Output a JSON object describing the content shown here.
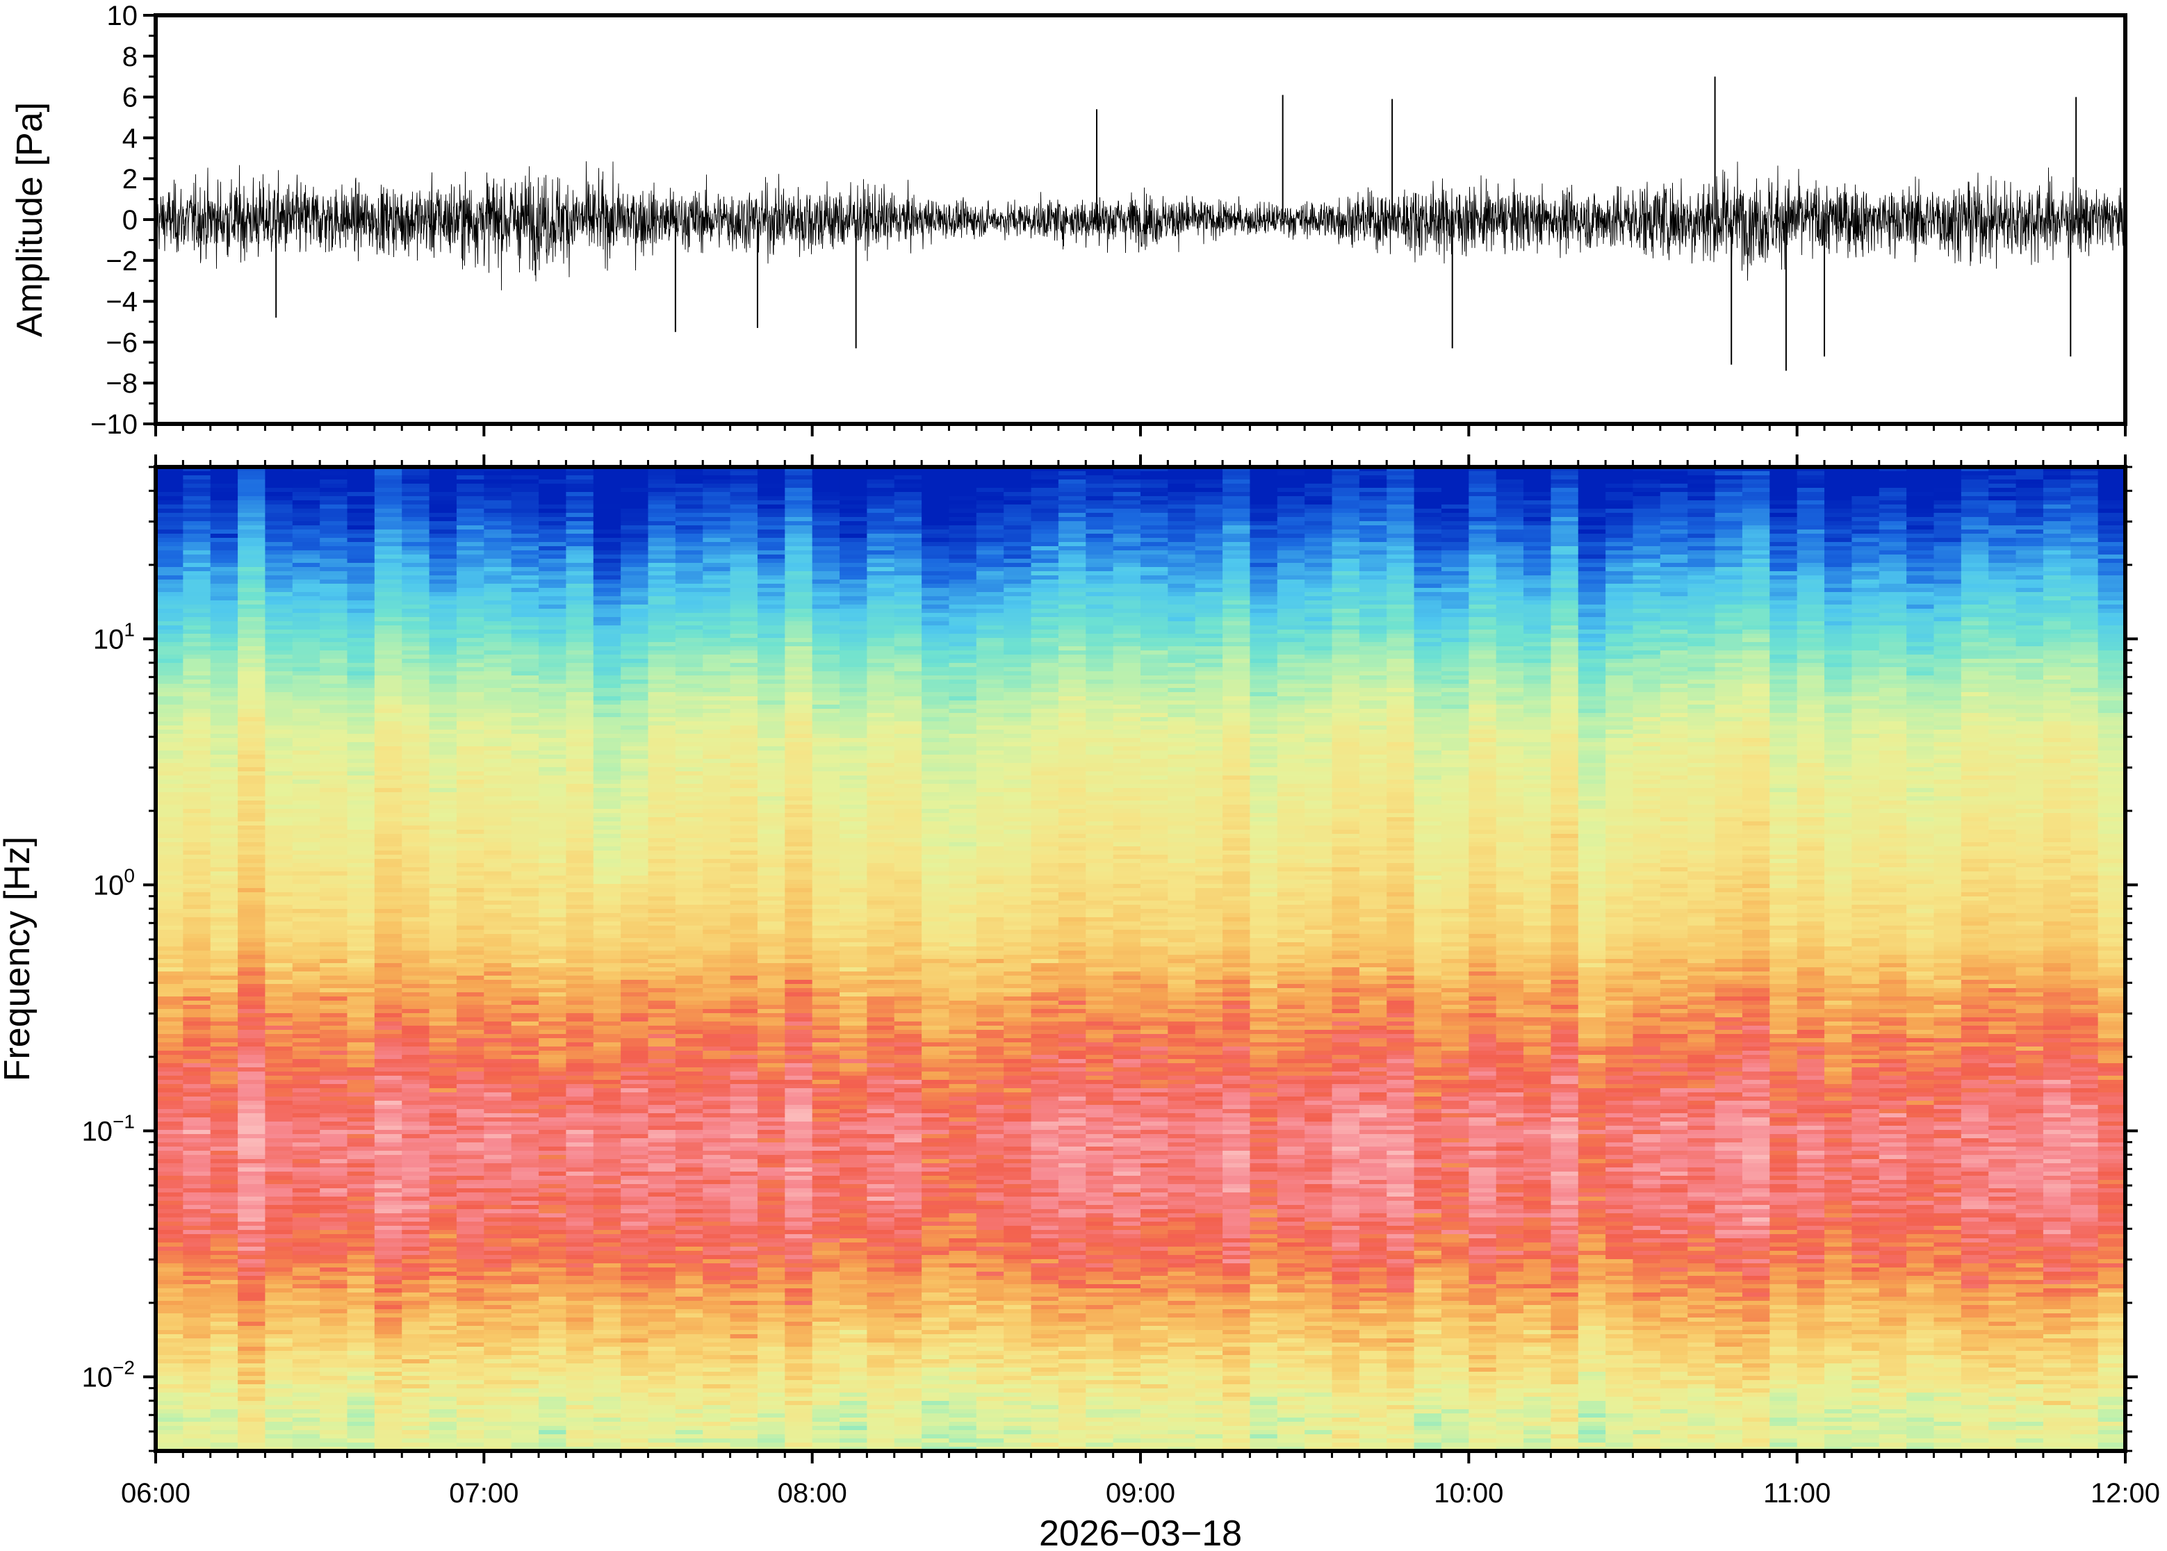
{
  "chart_data": [
    {
      "type": "line",
      "title": "",
      "xlabel": "",
      "ylabel": "Amplitude [Pa]",
      "xlim": [
        "06:00",
        "12:00"
      ],
      "ylim": [
        -10,
        10
      ],
      "y_ticks": [
        "10",
        "8",
        "6",
        "4",
        "2",
        "0",
        "−2",
        "−4",
        "−6",
        "−8",
        "−10"
      ],
      "x_ticks_labeled": false,
      "grid": false,
      "line_color": "#000000",
      "series": [
        {
          "description_of_values": "noisy waveform centered on 0 Pa",
          "typical_range": [
            -2.5,
            2.5
          ],
          "notable_peaks": [
            {
              "time": "10:45",
              "value": 7.0
            },
            {
              "time": "10:58",
              "value": -7.4
            },
            {
              "time": "10:48",
              "value": -7.1
            },
            {
              "time": "11:51",
              "value": 6.0
            },
            {
              "time": "11:50",
              "value": -6.7
            },
            {
              "time": "08:52",
              "value": 5.4
            },
            {
              "time": "09:57",
              "value": -6.3
            },
            {
              "time": "09:26",
              "value": 6.1
            },
            {
              "time": "09:46",
              "value": 5.9
            },
            {
              "time": "07:35",
              "value": -5.5
            },
            {
              "time": "07:50",
              "value": -5.3
            },
            {
              "time": "08:08",
              "value": -6.3
            },
            {
              "time": "11:05",
              "value": -6.7
            },
            {
              "time": "06:22",
              "value": -4.8
            }
          ]
        }
      ]
    },
    {
      "type": "heatmap",
      "title": "",
      "xlabel": "2026−03−18",
      "ylabel": "Frequency [Hz]",
      "xlim": [
        "06:00",
        "12:00"
      ],
      "ylim": [
        0.005,
        50
      ],
      "y_scale": "log",
      "x_ticks": [
        "06:00",
        "07:00",
        "08:00",
        "09:00",
        "10:00",
        "11:00",
        "12:00"
      ],
      "y_ticks": [
        {
          "base": "10",
          "exp": "−2",
          "value": 0.01
        },
        {
          "base": "10",
          "exp": "−1",
          "value": 0.1
        },
        {
          "base": "10",
          "exp": "0",
          "value": 1
        },
        {
          "base": "10",
          "exp": "1",
          "value": 10
        }
      ],
      "time_columns": 72,
      "colormap": "rainbow (blue = low power, pink = high power)",
      "colormap_stops": [
        "#0022bb",
        "#1b6ae0",
        "#4fc8ee",
        "#6fe2d0",
        "#b6f0b0",
        "#e6f29a",
        "#f6e486",
        "#f8c868",
        "#f6a352",
        "#f3604f",
        "#f78a92",
        "#fbb9b9"
      ],
      "power_profile_by_frequency": [
        {
          "freq": 45,
          "level": 0.0
        },
        {
          "freq": 25,
          "level": 0.1
        },
        {
          "freq": 13,
          "level": 0.22
        },
        {
          "freq": 8,
          "level": 0.33
        },
        {
          "freq": 4,
          "level": 0.46
        },
        {
          "freq": 1.5,
          "level": 0.52
        },
        {
          "freq": 0.6,
          "level": 0.6
        },
        {
          "freq": 0.35,
          "level": 0.72
        },
        {
          "freq": 0.2,
          "level": 0.8
        },
        {
          "freq": 0.1,
          "level": 0.9
        },
        {
          "freq": 0.05,
          "level": 0.87
        },
        {
          "freq": 0.03,
          "level": 0.8
        },
        {
          "freq": 0.02,
          "level": 0.7
        },
        {
          "freq": 0.012,
          "level": 0.58
        },
        {
          "freq": 0.007,
          "level": 0.45
        }
      ],
      "features": [
        {
          "time": "07:25",
          "note": "vertical band of lower power above 1 Hz"
        }
      ]
    }
  ]
}
